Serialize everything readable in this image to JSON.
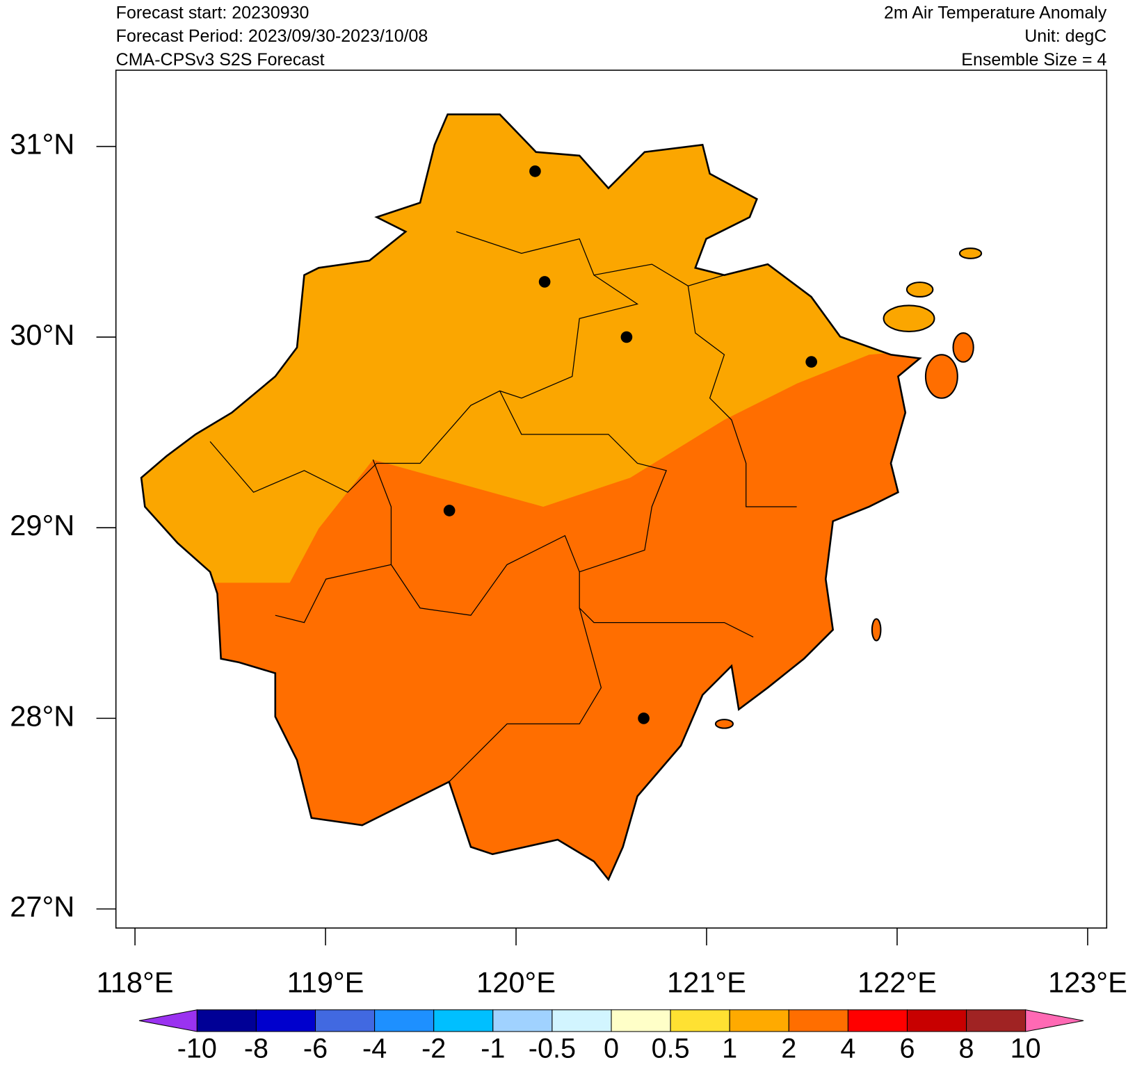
{
  "chart_data": {
    "type": "map",
    "header_left": [
      "Forecast start: 20230930",
      "Forecast Period: 2023/09/30-2023/10/08",
      "CMA-CPSv3 S2S Forecast"
    ],
    "header_right": [
      "2m Air Temperature Anomaly",
      "Unit: degC",
      "Ensemble Size = 4"
    ],
    "xlim": [
      117.9,
      123.1
    ],
    "ylim": [
      26.9,
      31.4
    ],
    "xticks": [
      {
        "value": 118,
        "label": "118°E"
      },
      {
        "value": 119,
        "label": "119°E"
      },
      {
        "value": 120,
        "label": "120°E"
      },
      {
        "value": 121,
        "label": "121°E"
      },
      {
        "value": 122,
        "label": "122°E"
      },
      {
        "value": 123,
        "label": "123°E"
      }
    ],
    "yticks": [
      {
        "value": 27,
        "label": "27°N"
      },
      {
        "value": 28,
        "label": "28°N"
      },
      {
        "value": 29,
        "label": "29°N"
      },
      {
        "value": 30,
        "label": "30°N"
      },
      {
        "value": 31,
        "label": "31°N"
      }
    ],
    "points": {
      "lon": [
        120.1,
        120.15,
        120.58,
        121.55,
        119.65,
        120.67
      ],
      "lat": [
        30.87,
        30.29,
        30.0,
        29.87,
        29.09,
        28.0
      ],
      "color": "#000000"
    },
    "colorbar": {
      "levels": [
        -10,
        -8,
        -6,
        -4,
        -2,
        -1,
        -0.5,
        0,
        0.5,
        1,
        2,
        4,
        6,
        8,
        10
      ],
      "colors": [
        "#9a32f0",
        "#000096",
        "#0000cd",
        "#4169e1",
        "#1e90ff",
        "#00bfff",
        "#a0d2ff",
        "#d2f5ff",
        "#ffffc8",
        "#ffe132",
        "#ffaa00",
        "#ff6e00",
        "#ff0000",
        "#c80000",
        "#a02323",
        "#ff69b4"
      ]
    }
  }
}
